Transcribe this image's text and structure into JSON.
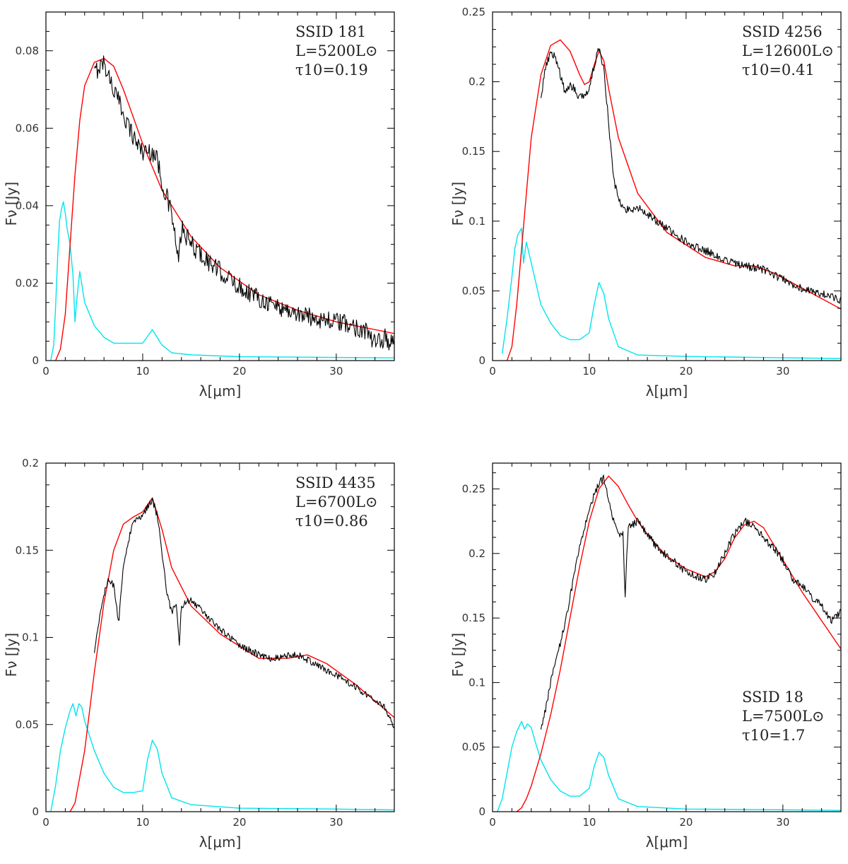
{
  "chart_data": [
    {
      "type": "line",
      "xlabel": "λ[μm]",
      "ylabel": "Fν [Jy]",
      "xlim": [
        0,
        36
      ],
      "ylim": [
        0,
        0.09
      ],
      "xticks": [
        0,
        10,
        20,
        30
      ],
      "yticks": [
        0,
        0.02,
        0.04,
        0.06,
        0.08
      ],
      "ytick_labels": [
        "0",
        "0.02",
        "0.04",
        "0.06",
        "0.08"
      ],
      "annotation": {
        "source": "SSID 181",
        "luminosity": "L=5200L⊙",
        "tau": "τ10=0.19",
        "position": "top-right"
      },
      "series": [
        {
          "role": "observed",
          "color": "#000000",
          "noise": 0.0025,
          "x": [
            5,
            5.5,
            6,
            7,
            8,
            9,
            10,
            11,
            11.5,
            12,
            13,
            13.7,
            14,
            15,
            17,
            20,
            23,
            26,
            30,
            33,
            34,
            35,
            36
          ],
          "y": [
            0.074,
            0.076,
            0.077,
            0.07,
            0.064,
            0.058,
            0.054,
            0.054,
            0.052,
            0.046,
            0.038,
            0.025,
            0.034,
            0.03,
            0.025,
            0.019,
            0.015,
            0.012,
            0.01,
            0.008,
            0.004,
            0.006,
            0.004
          ]
        },
        {
          "role": "model",
          "color": "#ff0000",
          "x": [
            1,
            1.5,
            2,
            2.5,
            3,
            3.5,
            4,
            5,
            6,
            7,
            8,
            9,
            10,
            12,
            15,
            18,
            22,
            26,
            30,
            36
          ],
          "y": [
            0,
            0.003,
            0.012,
            0.03,
            0.048,
            0.062,
            0.071,
            0.077,
            0.078,
            0.076,
            0.07,
            0.063,
            0.056,
            0.044,
            0.032,
            0.024,
            0.017,
            0.013,
            0.01,
            0.007
          ]
        },
        {
          "role": "star",
          "color": "#00e5ee",
          "x": [
            0.5,
            0.8,
            1,
            1.2,
            1.4,
            1.6,
            1.8,
            2,
            2.2,
            2.5,
            2.8,
            3,
            3.2,
            3.5,
            4,
            5,
            6,
            7,
            8,
            9,
            10,
            11,
            12,
            13,
            15,
            20,
            30,
            36
          ],
          "y": [
            0,
            0.004,
            0.014,
            0.026,
            0.036,
            0.039,
            0.041,
            0.038,
            0.034,
            0.03,
            0.022,
            0.01,
            0.016,
            0.023,
            0.015,
            0.009,
            0.006,
            0.0045,
            0.0045,
            0.0045,
            0.0045,
            0.008,
            0.004,
            0.002,
            0.0015,
            0.001,
            0.0008,
            0.0007
          ]
        }
      ]
    },
    {
      "type": "line",
      "xlabel": "λ[μm]",
      "ylabel": "Fν [Jy]",
      "xlim": [
        0,
        36
      ],
      "ylim": [
        0,
        0.25
      ],
      "xticks": [
        0,
        10,
        20,
        30
      ],
      "yticks": [
        0,
        0.05,
        0.1,
        0.15,
        0.2,
        0.25
      ],
      "ytick_labels": [
        "0",
        "0.05",
        "0.1",
        "0.15",
        "0.2",
        "0.25"
      ],
      "annotation": {
        "source": "SSID 4256",
        "luminosity": "L=12600L⊙",
        "tau": "τ10=0.41",
        "position": "top-right"
      },
      "series": [
        {
          "role": "observed",
          "color": "#000000",
          "noise": 0.003,
          "x": [
            5,
            5.5,
            6,
            6.5,
            7,
            7.5,
            8,
            8.5,
            9,
            9.5,
            10,
            10.5,
            11,
            11.5,
            12,
            12.5,
            13,
            13.5,
            14,
            15,
            17,
            20,
            25,
            28,
            30,
            32,
            34,
            36
          ],
          "y": [
            0.19,
            0.21,
            0.222,
            0.218,
            0.205,
            0.192,
            0.198,
            0.195,
            0.188,
            0.19,
            0.195,
            0.212,
            0.224,
            0.21,
            0.17,
            0.13,
            0.118,
            0.11,
            0.108,
            0.11,
            0.1,
            0.085,
            0.07,
            0.065,
            0.058,
            0.052,
            0.048,
            0.043
          ]
        },
        {
          "role": "model",
          "color": "#ff0000",
          "x": [
            1.5,
            2,
            2.5,
            3,
            3.5,
            4,
            5,
            6,
            7,
            8,
            9,
            9.5,
            10,
            10.5,
            11,
            11.5,
            12,
            13,
            15,
            18,
            22,
            25,
            27,
            29,
            32,
            36
          ],
          "y": [
            0,
            0.01,
            0.04,
            0.08,
            0.12,
            0.16,
            0.205,
            0.226,
            0.23,
            0.222,
            0.205,
            0.198,
            0.2,
            0.212,
            0.222,
            0.215,
            0.195,
            0.16,
            0.12,
            0.092,
            0.074,
            0.068,
            0.068,
            0.063,
            0.052,
            0.037
          ]
        },
        {
          "role": "star",
          "color": "#00e5ee",
          "x": [
            1,
            1.5,
            2,
            2.3,
            2.6,
            3,
            3.2,
            3.5,
            4,
            5,
            6,
            7,
            8,
            9,
            10,
            10.5,
            11,
            11.5,
            12,
            13,
            15,
            20,
            30,
            36
          ],
          "y": [
            0.005,
            0.03,
            0.06,
            0.08,
            0.09,
            0.095,
            0.07,
            0.085,
            0.07,
            0.04,
            0.027,
            0.018,
            0.015,
            0.015,
            0.02,
            0.04,
            0.056,
            0.048,
            0.03,
            0.01,
            0.004,
            0.003,
            0.002,
            0.0015
          ]
        }
      ]
    },
    {
      "type": "line",
      "xlabel": "λ[μm]",
      "ylabel": "Fν [Jy]",
      "xlim": [
        0,
        36
      ],
      "ylim": [
        0,
        0.2
      ],
      "xticks": [
        0,
        10,
        20,
        30
      ],
      "yticks": [
        0,
        0.05,
        0.1,
        0.15,
        0.2
      ],
      "ytick_labels": [
        "0",
        "0.05",
        "0.1",
        "0.15",
        "0.2"
      ],
      "annotation": {
        "source": "SSID 4435",
        "luminosity": "L=6700L⊙",
        "tau": "τ10=0.86",
        "position": "top-right"
      },
      "series": [
        {
          "role": "observed",
          "color": "#000000",
          "noise": 0.002,
          "x": [
            5,
            5.5,
            6,
            6.5,
            7,
            7.5,
            8,
            8.5,
            9,
            9.5,
            10,
            10.5,
            11,
            11.5,
            12,
            12.5,
            13,
            13.5,
            13.8,
            14,
            15,
            17,
            20,
            23,
            26,
            30,
            33,
            35,
            36
          ],
          "y": [
            0.09,
            0.11,
            0.125,
            0.133,
            0.13,
            0.108,
            0.14,
            0.155,
            0.166,
            0.168,
            0.17,
            0.175,
            0.179,
            0.17,
            0.148,
            0.125,
            0.115,
            0.118,
            0.095,
            0.118,
            0.122,
            0.11,
            0.095,
            0.088,
            0.09,
            0.078,
            0.068,
            0.06,
            0.048
          ]
        },
        {
          "role": "model",
          "color": "#ff0000",
          "x": [
            2.5,
            3,
            4,
            5,
            6,
            7,
            8,
            9,
            10,
            11,
            12,
            13,
            15,
            18,
            22,
            25,
            27,
            29,
            32,
            36
          ],
          "y": [
            0,
            0.005,
            0.035,
            0.08,
            0.12,
            0.15,
            0.165,
            0.169,
            0.172,
            0.18,
            0.162,
            0.14,
            0.118,
            0.102,
            0.088,
            0.088,
            0.09,
            0.085,
            0.073,
            0.054
          ]
        },
        {
          "role": "star",
          "color": "#00e5ee",
          "x": [
            0.5,
            1,
            1.5,
            2,
            2.5,
            2.8,
            3.1,
            3.4,
            3.7,
            4,
            5,
            6,
            7,
            8,
            9,
            10,
            10.5,
            11,
            11.5,
            12,
            13,
            15,
            20,
            30,
            36
          ],
          "y": [
            0,
            0.015,
            0.035,
            0.048,
            0.058,
            0.062,
            0.055,
            0.062,
            0.06,
            0.052,
            0.035,
            0.022,
            0.014,
            0.011,
            0.011,
            0.012,
            0.03,
            0.041,
            0.036,
            0.022,
            0.008,
            0.004,
            0.002,
            0.0015,
            0.001
          ]
        }
      ]
    },
    {
      "type": "line",
      "xlabel": "λ[μm]",
      "ylabel": "Fν [Jy]",
      "xlim": [
        0,
        36
      ],
      "ylim": [
        0,
        0.27
      ],
      "xticks": [
        0,
        10,
        20,
        30
      ],
      "yticks": [
        0,
        0.05,
        0.1,
        0.15,
        0.2,
        0.25
      ],
      "ytick_labels": [
        "0",
        "0.05",
        "0.1",
        "0.15",
        "0.2",
        "0.25"
      ],
      "annotation": {
        "source": "SSID 18",
        "luminosity": "L=7500L⊙",
        "tau": "τ10=1.7",
        "position": "bottom-right"
      },
      "series": [
        {
          "role": "observed",
          "color": "#000000",
          "noise": 0.003,
          "x": [
            5,
            5.5,
            6,
            7,
            8,
            9,
            10,
            11,
            11.5,
            12,
            12.5,
            13,
            13.5,
            13.7,
            14,
            14.5,
            15,
            16,
            17,
            18,
            19,
            20,
            21,
            22,
            23,
            24,
            25,
            26,
            27,
            28,
            29,
            30,
            31,
            32,
            33,
            34,
            35,
            36
          ],
          "y": [
            0.065,
            0.08,
            0.1,
            0.13,
            0.165,
            0.205,
            0.235,
            0.255,
            0.258,
            0.24,
            0.225,
            0.215,
            0.215,
            0.165,
            0.22,
            0.222,
            0.225,
            0.215,
            0.205,
            0.198,
            0.192,
            0.186,
            0.182,
            0.18,
            0.185,
            0.2,
            0.215,
            0.225,
            0.222,
            0.212,
            0.205,
            0.195,
            0.18,
            0.175,
            0.165,
            0.16,
            0.148,
            0.155
          ]
        },
        {
          "role": "model",
          "color": "#ff0000",
          "x": [
            2.5,
            3,
            3.5,
            4,
            5,
            6,
            7,
            8,
            9,
            10,
            11,
            12,
            13,
            14,
            15,
            16,
            17,
            18,
            20,
            22,
            23,
            24,
            25,
            26,
            27,
            28,
            30,
            32,
            34,
            36
          ],
          "y": [
            0,
            0.003,
            0.01,
            0.02,
            0.045,
            0.075,
            0.11,
            0.15,
            0.19,
            0.225,
            0.25,
            0.26,
            0.252,
            0.238,
            0.225,
            0.215,
            0.206,
            0.198,
            0.188,
            0.182,
            0.186,
            0.196,
            0.212,
            0.222,
            0.225,
            0.22,
            0.195,
            0.17,
            0.148,
            0.126
          ]
        },
        {
          "role": "star",
          "color": "#00e5ee",
          "x": [
            0.5,
            1,
            1.5,
            2,
            2.5,
            3,
            3.3,
            3.6,
            4,
            4.5,
            5,
            6,
            7,
            8,
            9,
            10,
            10.5,
            11,
            11.5,
            12,
            13,
            15,
            20,
            30,
            36
          ],
          "y": [
            0,
            0.01,
            0.03,
            0.05,
            0.062,
            0.07,
            0.064,
            0.068,
            0.065,
            0.052,
            0.04,
            0.025,
            0.016,
            0.012,
            0.012,
            0.018,
            0.035,
            0.046,
            0.042,
            0.028,
            0.01,
            0.004,
            0.002,
            0.0015,
            0.001
          ]
        }
      ]
    }
  ]
}
